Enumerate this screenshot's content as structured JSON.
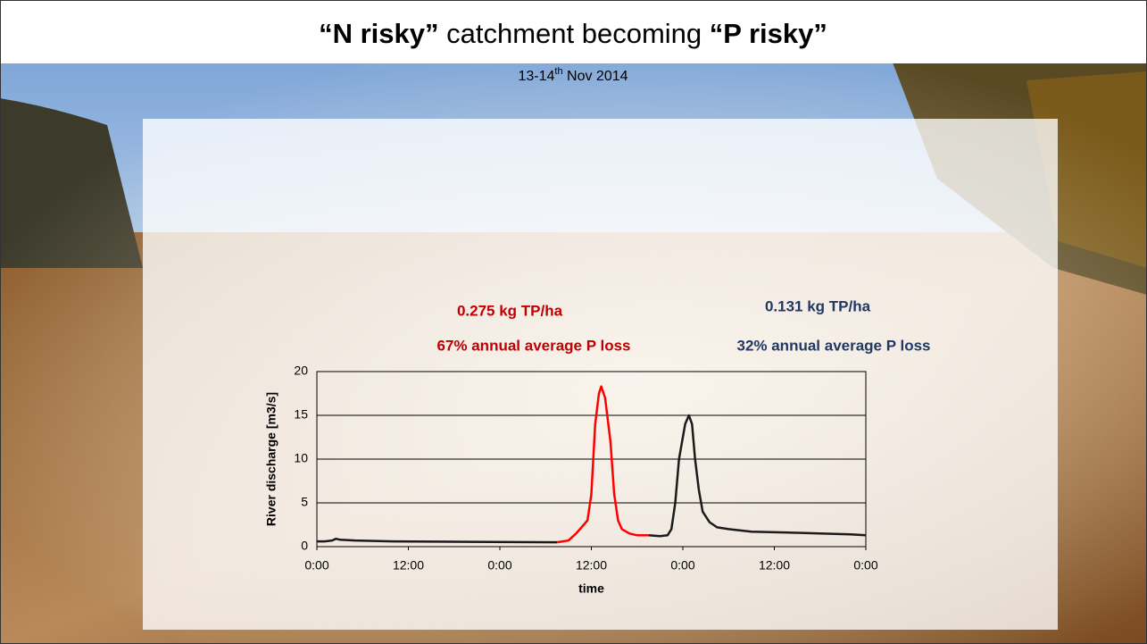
{
  "title_parts": [
    "“N risky”",
    " catchment becoming ",
    "“P risky”"
  ],
  "subtitle_parts": [
    "13-14",
    "th",
    " Nov 2014"
  ],
  "annotations": [
    {
      "text": "0.275 kg TP/ha",
      "color": "#c00000"
    },
    {
      "text": "67% annual average P loss",
      "color": "#c00000"
    },
    {
      "text": "0.131 kg TP/ha",
      "color": "#1f3864"
    },
    {
      "text": "32% annual average P loss",
      "color": "#1f3864"
    }
  ],
  "chart_data": {
    "type": "line",
    "y_label": "River discharge  [m3/s]",
    "x_label": "time",
    "xlim": [
      0,
      72
    ],
    "ylim": [
      0,
      20
    ],
    "yticks": [
      0,
      5,
      10,
      15,
      20
    ],
    "xticks": [
      {
        "value": 0,
        "label": "0:00"
      },
      {
        "value": 12,
        "label": "12:00"
      },
      {
        "value": 24,
        "label": "0:00"
      },
      {
        "value": 36,
        "label": "12:00"
      },
      {
        "value": 48,
        "label": "0:00"
      },
      {
        "value": 60,
        "label": "12:00"
      },
      {
        "value": 72,
        "label": "0:00"
      }
    ],
    "grid": true,
    "series": [
      {
        "color": "#1a1a1a",
        "x": [
          0,
          1,
          2,
          2.5,
          3,
          5,
          10,
          20,
          31.5
        ],
        "values": [
          0.6,
          0.6,
          0.7,
          0.9,
          0.8,
          0.7,
          0.6,
          0.55,
          0.5
        ]
      },
      {
        "color": "#ff0000",
        "x": [
          31.5,
          33,
          34,
          35,
          35.5,
          36,
          36.5,
          37,
          37.3,
          37.8,
          38.5,
          39,
          39.5,
          40,
          41,
          42,
          43.5
        ],
        "values": [
          0.5,
          0.7,
          1.5,
          2.5,
          3,
          6,
          14,
          17.5,
          18.3,
          17,
          12,
          6,
          3,
          2,
          1.5,
          1.3,
          1.3
        ]
      },
      {
        "color": "#1a1a1a",
        "x": [
          43.5,
          45,
          46,
          46.5,
          47,
          47.5,
          48.3,
          48.8,
          49.2,
          49.6,
          50.1,
          50.6,
          51.5,
          52.5,
          54,
          57,
          62,
          66,
          70,
          72
        ],
        "values": [
          1.3,
          1.2,
          1.3,
          2,
          5,
          10,
          14,
          15,
          14,
          10,
          6.5,
          4,
          2.8,
          2.2,
          2,
          1.7,
          1.6,
          1.5,
          1.4,
          1.3
        ]
      }
    ]
  }
}
